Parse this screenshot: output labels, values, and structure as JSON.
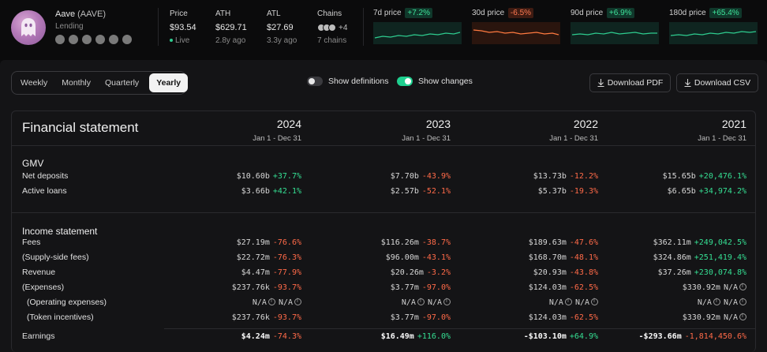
{
  "project": {
    "name": "Aave",
    "ticker": "(AAVE)",
    "category": "Lending",
    "social_icons": [
      "tool-icon",
      "github-icon",
      "twitter-icon",
      "discord-icon",
      "telegram-icon",
      "globe-icon"
    ]
  },
  "stats": {
    "price": {
      "label": "Price",
      "value": "$93.54",
      "sub": "Live"
    },
    "ath": {
      "label": "ATH",
      "value": "$629.71",
      "sub": "2.8y ago"
    },
    "atl": {
      "label": "ATL",
      "value": "$27.69",
      "sub": "3.3y ago"
    },
    "chains": {
      "label": "Chains",
      "extra": "+4",
      "sub": "7 chains"
    }
  },
  "sparklines": [
    {
      "label": "7d price",
      "change": "+7.2%",
      "direction": "up"
    },
    {
      "label": "30d price",
      "change": "-6.5%",
      "direction": "down"
    },
    {
      "label": "90d price",
      "change": "+6.9%",
      "direction": "up"
    },
    {
      "label": "180d price",
      "change": "+65.4%",
      "direction": "up"
    }
  ],
  "controls": {
    "periods": [
      "Weekly",
      "Monthly",
      "Quarterly",
      "Yearly"
    ],
    "active_period": "Yearly",
    "show_definitions": {
      "label": "Show definitions",
      "on": false
    },
    "show_changes": {
      "label": "Show changes",
      "on": true
    },
    "download_pdf": "Download PDF",
    "download_csv": "Download CSV"
  },
  "table": {
    "title": "Financial statement",
    "years": [
      {
        "year": "2024",
        "range": "Jan 1 - Dec 31"
      },
      {
        "year": "2023",
        "range": "Jan 1 - Dec 31"
      },
      {
        "year": "2022",
        "range": "Jan 1 - Dec 31"
      },
      {
        "year": "2021",
        "range": "Jan 1 - Dec 31"
      }
    ],
    "sections": {
      "gmv": "GMV",
      "income": "Income statement"
    },
    "rows": [
      {
        "label": "Net deposits",
        "cells": [
          [
            "$10.60b",
            "+37.7%"
          ],
          [
            "$7.70b",
            "-43.9%"
          ],
          [
            "$13.73b",
            "-12.2%"
          ],
          [
            "$15.65b",
            "+20,476.1%"
          ]
        ]
      },
      {
        "label": "Active loans",
        "cells": [
          [
            "$3.66b",
            "+42.1%"
          ],
          [
            "$2.57b",
            "-52.1%"
          ],
          [
            "$5.37b",
            "-19.3%"
          ],
          [
            "$6.65b",
            "+34,974.2%"
          ]
        ]
      },
      {
        "label": "Fees",
        "cells": [
          [
            "$27.19m",
            "-76.6%"
          ],
          [
            "$116.26m",
            "-38.7%"
          ],
          [
            "$189.63m",
            "-47.6%"
          ],
          [
            "$362.11m",
            "+249,042.5%"
          ]
        ]
      },
      {
        "label": "(Supply-side fees)",
        "cells": [
          [
            "$22.72m",
            "-76.3%"
          ],
          [
            "$96.00m",
            "-43.1%"
          ],
          [
            "$168.70m",
            "-48.1%"
          ],
          [
            "$324.86m",
            "+251,419.4%"
          ]
        ]
      },
      {
        "label": "Revenue",
        "cells": [
          [
            "$4.47m",
            "-77.9%"
          ],
          [
            "$20.26m",
            "-3.2%"
          ],
          [
            "$20.93m",
            "-43.8%"
          ],
          [
            "$37.26m",
            "+230,074.8%"
          ]
        ]
      },
      {
        "label": "(Expenses)",
        "cells": [
          [
            "$237.76k",
            "-93.7%"
          ],
          [
            "$3.77m",
            "-97.0%"
          ],
          [
            "$124.03m",
            "-62.5%"
          ],
          [
            "$330.92m",
            "N/A"
          ]
        ]
      },
      {
        "label": "(Operating expenses)",
        "cells": [
          [
            "N/A",
            "N/A"
          ],
          [
            "N/A",
            "N/A"
          ],
          [
            "N/A",
            "N/A"
          ],
          [
            "N/A",
            "N/A"
          ]
        ]
      },
      {
        "label": "(Token incentives)",
        "cells": [
          [
            "$237.76k",
            "-93.7%"
          ],
          [
            "$3.77m",
            "-97.0%"
          ],
          [
            "$124.03m",
            "-62.5%"
          ],
          [
            "$330.92m",
            "N/A"
          ]
        ]
      },
      {
        "label": "Earnings",
        "cells": [
          [
            "$4.24m",
            "-74.3%"
          ],
          [
            "$16.49m",
            "+116.0%"
          ],
          [
            "-$103.10m",
            "+64.9%"
          ],
          [
            "-$293.66m",
            "-1,814,450.6%"
          ]
        ]
      }
    ]
  }
}
